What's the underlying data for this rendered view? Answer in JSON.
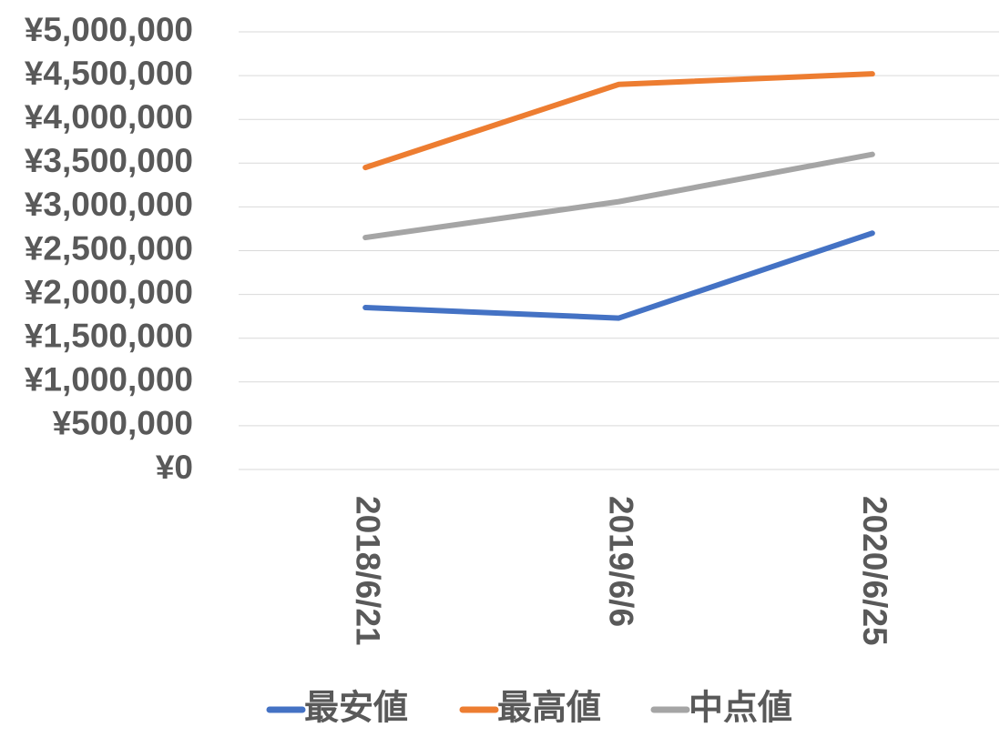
{
  "chart_data": {
    "type": "line",
    "categories": [
      "2018/6/21",
      "2019/6/6",
      "2020/6/25"
    ],
    "series": [
      {
        "name": "最安値",
        "color": "#4472c4",
        "values": [
          1850000,
          1730000,
          2700000
        ]
      },
      {
        "name": "最高値",
        "color": "#ed7d31",
        "values": [
          3450000,
          4400000,
          4520000
        ]
      },
      {
        "name": "中点値",
        "color": "#a5a5a5",
        "values": [
          2650000,
          3060000,
          3600000
        ]
      }
    ],
    "ylim": [
      0,
      5000000
    ],
    "ytick_step": 500000,
    "y_tick_labels": [
      "¥0",
      "¥500,000",
      "¥1,000,000",
      "¥1,500,000",
      "¥2,000,000",
      "¥2,500,000",
      "¥3,000,000",
      "¥3,500,000",
      "¥4,000,000",
      "¥4,500,000",
      "¥5,000,000"
    ],
    "grid": true,
    "legend_position": "bottom",
    "x_tick_rotation": "vertical"
  }
}
